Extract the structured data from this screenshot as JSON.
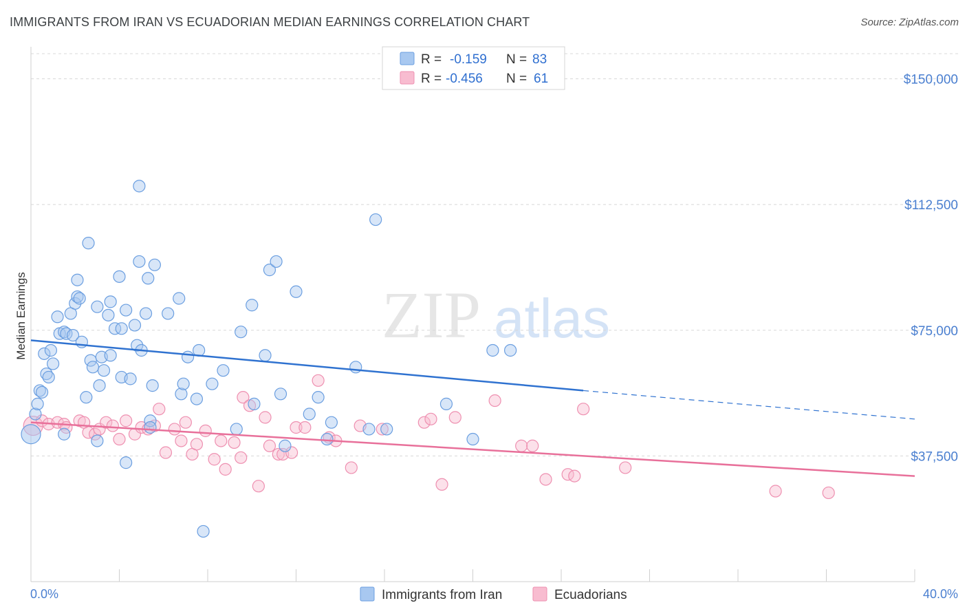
{
  "title": "IMMIGRANTS FROM IRAN VS ECUADORIAN MEDIAN EARNINGS CORRELATION CHART",
  "source": "Source: ZipAtlas.com",
  "watermark": {
    "zip": "ZIP",
    "atlas": "atlas"
  },
  "colors": {
    "blue_fill": "#a8c8f0",
    "blue_stroke": "#6a9ee0",
    "blue_line": "#2f72d0",
    "pink_fill": "#f8bcd0",
    "pink_stroke": "#ee8fb0",
    "pink_line": "#e8709a",
    "label_blue": "#4a7fd0",
    "grid": "#d8d8d8"
  },
  "legend": {
    "rows": [
      {
        "r_label": "R =",
        "r_value": "-0.159",
        "n_label": "N =",
        "n_value": "83",
        "series": "blue"
      },
      {
        "r_label": "R =",
        "r_value": "-0.456",
        "n_label": "N =",
        "n_value": "61",
        "series": "pink"
      }
    ]
  },
  "chart_data": {
    "type": "scatter",
    "ylabel": "Median Earnings",
    "xlim": [
      0,
      40
    ],
    "ylim": [
      0,
      150000
    ],
    "x_tick_labels": [
      "0.0%",
      "40.0%"
    ],
    "y_ticks": [
      {
        "value": 150000,
        "label": "$150,000"
      },
      {
        "value": 112500,
        "label": "$112,500"
      },
      {
        "value": 75000,
        "label": "$75,000"
      },
      {
        "value": 37500,
        "label": "$37,500"
      }
    ],
    "grid": true,
    "series": [
      {
        "name": "Immigrants from Iran",
        "color": "blue",
        "trend": {
          "x": [
            0,
            25
          ],
          "y": [
            72000,
            57000
          ],
          "dashed_to": [
            40,
            48500
          ]
        },
        "points": [
          [
            0.0,
            44000,
            1
          ],
          [
            0.2,
            50000,
            0
          ],
          [
            0.3,
            53000,
            0
          ],
          [
            0.4,
            57000,
            0
          ],
          [
            0.5,
            56500,
            0
          ],
          [
            0.6,
            68000,
            0
          ],
          [
            0.7,
            62000,
            0
          ],
          [
            0.8,
            61000,
            0
          ],
          [
            0.9,
            69000,
            0
          ],
          [
            1.0,
            65000,
            0
          ],
          [
            1.2,
            79000,
            0
          ],
          [
            1.3,
            74000,
            0
          ],
          [
            1.5,
            74500,
            0
          ],
          [
            1.5,
            44000,
            0
          ],
          [
            1.6,
            74000,
            0
          ],
          [
            1.8,
            80000,
            0
          ],
          [
            1.9,
            73500,
            0
          ],
          [
            2.0,
            83000,
            0
          ],
          [
            2.1,
            90000,
            0
          ],
          [
            2.1,
            85000,
            0
          ],
          [
            2.2,
            84500,
            0
          ],
          [
            2.3,
            71500,
            0
          ],
          [
            2.5,
            55000,
            0
          ],
          [
            2.6,
            101000,
            0
          ],
          [
            2.7,
            66000,
            0
          ],
          [
            2.8,
            64000,
            0
          ],
          [
            3.0,
            82000,
            0
          ],
          [
            3.0,
            42000,
            0
          ],
          [
            3.1,
            58500,
            0
          ],
          [
            3.2,
            67000,
            0
          ],
          [
            3.3,
            63000,
            0
          ],
          [
            3.5,
            79500,
            0
          ],
          [
            3.6,
            83500,
            0
          ],
          [
            3.6,
            67500,
            0
          ],
          [
            3.8,
            75500,
            0
          ],
          [
            4.0,
            91000,
            0
          ],
          [
            4.1,
            75500,
            0
          ],
          [
            4.1,
            61000,
            0
          ],
          [
            4.3,
            81000,
            0
          ],
          [
            4.3,
            35500,
            0
          ],
          [
            4.5,
            60500,
            0
          ],
          [
            4.7,
            76500,
            0
          ],
          [
            4.8,
            70500,
            0
          ],
          [
            4.9,
            118000,
            0
          ],
          [
            4.9,
            95500,
            0
          ],
          [
            5.0,
            69000,
            0
          ],
          [
            5.2,
            80000,
            0
          ],
          [
            5.3,
            90500,
            0
          ],
          [
            5.4,
            48000,
            0
          ],
          [
            5.4,
            46000,
            0
          ],
          [
            5.5,
            58500,
            0
          ],
          [
            5.6,
            94500,
            0
          ],
          [
            6.2,
            80000,
            0
          ],
          [
            6.7,
            84500,
            0
          ],
          [
            6.8,
            56000,
            0
          ],
          [
            6.9,
            59000,
            0
          ],
          [
            7.1,
            67000,
            0
          ],
          [
            7.5,
            54500,
            0
          ],
          [
            7.6,
            69000,
            0
          ],
          [
            7.8,
            15000,
            0
          ],
          [
            8.2,
            59000,
            0
          ],
          [
            8.7,
            63000,
            0
          ],
          [
            9.3,
            45500,
            0
          ],
          [
            9.5,
            74500,
            0
          ],
          [
            10.0,
            82500,
            0
          ],
          [
            10.1,
            53000,
            0
          ],
          [
            10.6,
            67500,
            0
          ],
          [
            10.8,
            93000,
            0
          ],
          [
            11.1,
            95500,
            0
          ],
          [
            11.3,
            56000,
            0
          ],
          [
            11.5,
            40500,
            0
          ],
          [
            12.0,
            86500,
            0
          ],
          [
            12.6,
            50000,
            0
          ],
          [
            13.0,
            55000,
            0
          ],
          [
            13.4,
            42500,
            0
          ],
          [
            13.6,
            47500,
            0
          ],
          [
            14.7,
            64000,
            0
          ],
          [
            15.3,
            45500,
            0
          ],
          [
            15.6,
            108000,
            0
          ],
          [
            16.1,
            45500,
            0
          ],
          [
            18.8,
            53000,
            0
          ],
          [
            20.0,
            42500,
            0
          ],
          [
            20.9,
            69000,
            0
          ],
          [
            21.7,
            69000,
            0
          ]
        ]
      },
      {
        "name": "Ecuadorians",
        "color": "pink",
        "trend": {
          "x": [
            0,
            40
          ],
          "y": [
            47500,
            31500
          ]
        },
        "points": [
          [
            0.1,
            46500,
            1
          ],
          [
            0.5,
            48000,
            0
          ],
          [
            0.8,
            47000,
            0
          ],
          [
            1.2,
            47500,
            0
          ],
          [
            1.5,
            47000,
            0
          ],
          [
            1.6,
            46000,
            0
          ],
          [
            2.2,
            48000,
            0
          ],
          [
            2.4,
            47500,
            0
          ],
          [
            2.6,
            44500,
            0
          ],
          [
            2.9,
            44000,
            0
          ],
          [
            3.1,
            45500,
            0
          ],
          [
            3.4,
            47500,
            0
          ],
          [
            3.7,
            46500,
            0
          ],
          [
            4.0,
            42500,
            0
          ],
          [
            4.3,
            48000,
            0
          ],
          [
            4.7,
            44000,
            0
          ],
          [
            5.0,
            46000,
            0
          ],
          [
            5.3,
            45500,
            0
          ],
          [
            5.6,
            46500,
            0
          ],
          [
            5.8,
            51500,
            0
          ],
          [
            6.1,
            38500,
            0
          ],
          [
            6.5,
            45500,
            0
          ],
          [
            6.8,
            42000,
            0
          ],
          [
            7.0,
            47500,
            0
          ],
          [
            7.3,
            38000,
            0
          ],
          [
            7.5,
            41000,
            0
          ],
          [
            7.9,
            45000,
            0
          ],
          [
            8.3,
            36500,
            0
          ],
          [
            8.6,
            42000,
            0
          ],
          [
            8.8,
            33500,
            0
          ],
          [
            9.2,
            41500,
            0
          ],
          [
            9.5,
            37000,
            0
          ],
          [
            9.6,
            55000,
            0
          ],
          [
            9.9,
            52500,
            0
          ],
          [
            10.3,
            28500,
            0
          ],
          [
            10.6,
            49000,
            0
          ],
          [
            10.8,
            40500,
            0
          ],
          [
            11.2,
            38000,
            0
          ],
          [
            11.4,
            38000,
            0
          ],
          [
            11.8,
            38500,
            0
          ],
          [
            12.0,
            46000,
            0
          ],
          [
            12.4,
            46000,
            0
          ],
          [
            13.0,
            60000,
            0
          ],
          [
            13.5,
            43000,
            0
          ],
          [
            13.8,
            42000,
            0
          ],
          [
            14.5,
            34000,
            0
          ],
          [
            14.9,
            46500,
            0
          ],
          [
            15.9,
            45500,
            0
          ],
          [
            17.8,
            47500,
            0
          ],
          [
            18.1,
            48500,
            0
          ],
          [
            18.6,
            29000,
            0
          ],
          [
            19.2,
            49000,
            0
          ],
          [
            21.0,
            54000,
            0
          ],
          [
            22.2,
            40500,
            0
          ],
          [
            22.7,
            40500,
            0
          ],
          [
            23.3,
            30500,
            0
          ],
          [
            24.3,
            32000,
            0
          ],
          [
            24.6,
            31500,
            0
          ],
          [
            25.0,
            51500,
            0
          ],
          [
            26.9,
            34000,
            0
          ],
          [
            33.7,
            27000,
            0
          ],
          [
            36.1,
            26500,
            0
          ]
        ]
      }
    ]
  },
  "bottom_legend": [
    {
      "label": "Immigrants from Iran",
      "color": "blue"
    },
    {
      "label": "Ecuadorians",
      "color": "pink"
    }
  ]
}
